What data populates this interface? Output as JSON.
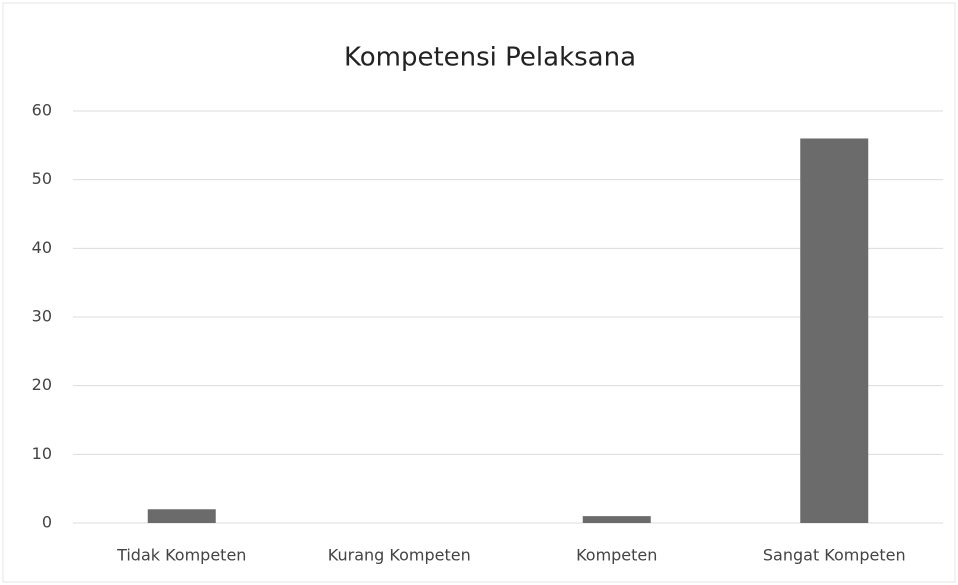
{
  "chart_data": {
    "type": "bar",
    "title": "Kompetensi Pelaksana",
    "categories": [
      "Tidak Kompeten",
      "Kurang Kompeten",
      "Kompeten",
      "Sangat Kompeten"
    ],
    "values": [
      2,
      0,
      1,
      56
    ],
    "color": "#6b6b6b",
    "ylim": [
      0,
      60
    ],
    "yticks": [
      0,
      10,
      20,
      30,
      40,
      50,
      60
    ],
    "grid": true
  }
}
